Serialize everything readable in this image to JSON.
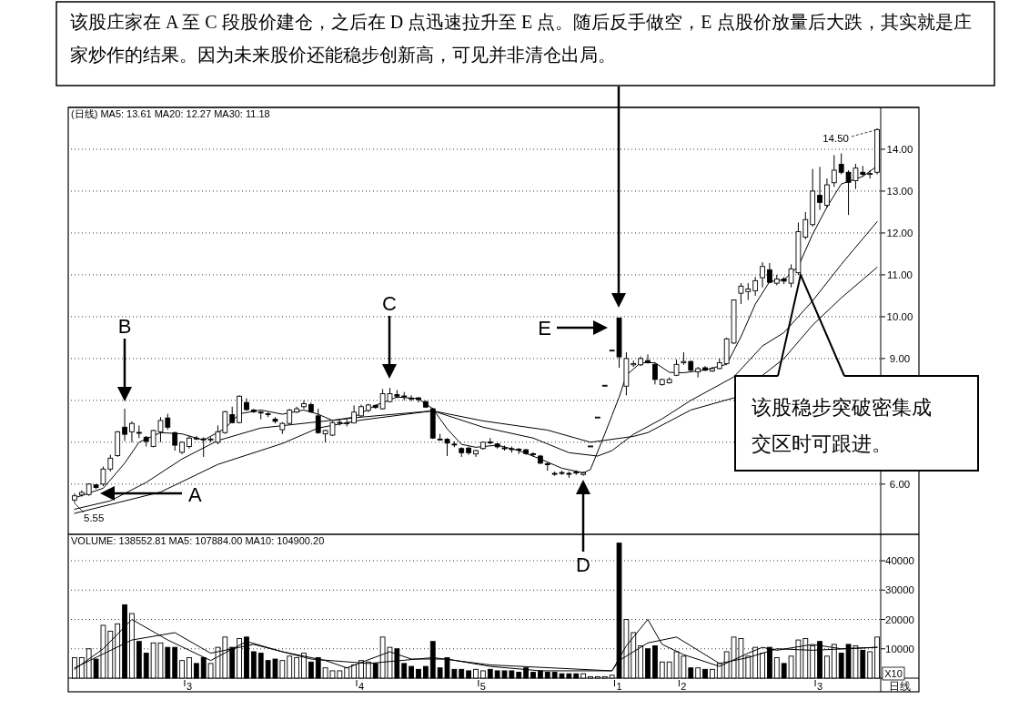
{
  "chart_data": [
    {
      "type": "candlestick",
      "title": "该股庄家在 A 至 C 段股价建仓，之后在 D 点迅速拉升至 E 点。随后反手做空，E 点股价放量后大跌，其实就是庄家炒作的结果。因为未来股价还能稳步创新高，可见并非清仓出局。",
      "subtitle": "(日线) MA5: 13.61  MA20: 12.27  MA30: 11.18",
      "categories": [
        null,
        null,
        null,
        null,
        null,
        null,
        null,
        null,
        null,
        null,
        null,
        null,
        null,
        null,
        null,
        null,
        null,
        null,
        null,
        null,
        null,
        null,
        null,
        null,
        null,
        null,
        null,
        null,
        null,
        null,
        null,
        null,
        null,
        null,
        null,
        null,
        null,
        null,
        null,
        null,
        null,
        null,
        null,
        null,
        null,
        null,
        null,
        null,
        null,
        null,
        null,
        null,
        null,
        null,
        null,
        null,
        null,
        null,
        null,
        null,
        null,
        null,
        null,
        null,
        null,
        null,
        null,
        null,
        null,
        null,
        null,
        null,
        null,
        null,
        null,
        null,
        null,
        null,
        null,
        null,
        null,
        null,
        null,
        null,
        null,
        null,
        null,
        null,
        null,
        null,
        null,
        null,
        null,
        null,
        null,
        null,
        null,
        null,
        null,
        null,
        null,
        null,
        null,
        null,
        null,
        null,
        null,
        null,
        null,
        null,
        null,
        null,
        null
      ],
      "ohlc": [
        [
          5.62,
          5.78,
          5.55,
          5.72
        ],
        [
          5.74,
          5.85,
          5.7,
          5.8
        ],
        [
          5.75,
          6.02,
          5.72,
          6.0
        ],
        [
          5.98,
          6.0,
          5.88,
          5.92
        ],
        [
          6.0,
          6.42,
          5.95,
          6.36
        ],
        [
          6.36,
          6.7,
          6.3,
          6.62
        ],
        [
          6.68,
          7.27,
          6.65,
          7.25
        ],
        [
          7.36,
          7.8,
          7.03,
          7.19
        ],
        [
          7.25,
          7.5,
          7.0,
          7.45
        ],
        [
          7.23,
          7.4,
          7.1,
          7.22
        ],
        [
          7.12,
          7.15,
          6.9,
          7.02
        ],
        [
          6.9,
          7.3,
          6.88,
          7.28
        ],
        [
          7.25,
          7.6,
          7.0,
          7.52
        ],
        [
          7.58,
          7.68,
          7.3,
          7.36
        ],
        [
          7.23,
          7.25,
          6.8,
          6.93
        ],
        [
          6.76,
          7.02,
          6.72,
          7.0
        ],
        [
          6.9,
          7.15,
          6.85,
          7.1
        ],
        [
          7.1,
          7.15,
          7.05,
          7.08
        ],
        [
          7.08,
          7.12,
          6.65,
          7.06
        ],
        [
          7.06,
          7.12,
          7.0,
          7.07
        ],
        [
          7.0,
          7.4,
          6.95,
          7.25
        ],
        [
          7.23,
          7.75,
          7.2,
          7.73
        ],
        [
          7.66,
          7.85,
          7.45,
          7.47
        ],
        [
          7.47,
          8.12,
          7.45,
          8.1
        ],
        [
          7.95,
          8.05,
          7.75,
          7.78
        ],
        [
          7.77,
          7.8,
          7.7,
          7.73
        ],
        [
          7.72,
          7.75,
          7.55,
          7.7
        ],
        [
          7.68,
          7.72,
          7.6,
          7.66
        ],
        [
          7.55,
          7.6,
          7.45,
          7.5
        ],
        [
          7.3,
          7.48,
          7.2,
          7.45
        ],
        [
          7.45,
          7.8,
          7.42,
          7.77
        ],
        [
          7.72,
          7.85,
          7.7,
          7.8
        ],
        [
          7.85,
          8.0,
          7.8,
          7.92
        ],
        [
          7.9,
          7.95,
          7.7,
          7.73
        ],
        [
          7.63,
          7.8,
          7.2,
          7.23
        ],
        [
          7.2,
          7.3,
          7.0,
          7.28
        ],
        [
          7.17,
          7.5,
          7.15,
          7.47
        ],
        [
          7.46,
          7.55,
          7.4,
          7.47
        ],
        [
          7.45,
          7.55,
          7.38,
          7.46
        ],
        [
          7.46,
          7.88,
          7.45,
          7.72
        ],
        [
          7.63,
          7.9,
          7.6,
          7.85
        ],
        [
          7.76,
          7.92,
          7.72,
          7.89
        ],
        [
          7.88,
          7.9,
          7.8,
          7.83
        ],
        [
          7.8,
          8.27,
          7.78,
          8.16
        ],
        [
          7.97,
          8.3,
          7.95,
          8.16
        ],
        [
          8.14,
          8.25,
          8.05,
          8.1
        ],
        [
          8.1,
          8.2,
          8.0,
          8.09
        ],
        [
          8.05,
          8.12,
          7.98,
          8.04
        ],
        [
          8.06,
          8.08,
          7.95,
          8.02
        ],
        [
          7.97,
          8.0,
          7.82,
          7.84
        ],
        [
          7.8,
          7.82,
          7.08,
          7.1
        ],
        [
          7.07,
          7.2,
          7.05,
          7.06
        ],
        [
          7.07,
          7.1,
          6.67,
          6.98
        ],
        [
          6.95,
          7.02,
          6.88,
          6.94
        ],
        [
          6.85,
          6.88,
          6.65,
          6.75
        ],
        [
          6.86,
          6.9,
          6.7,
          6.75
        ],
        [
          6.72,
          6.82,
          6.65,
          6.8
        ],
        [
          6.85,
          7.02,
          6.82,
          7.0
        ],
        [
          7.0,
          7.1,
          6.95,
          6.99
        ],
        [
          6.96,
          6.98,
          6.85,
          6.89
        ],
        [
          6.86,
          6.92,
          6.8,
          6.85
        ],
        [
          6.84,
          6.9,
          6.75,
          6.83
        ],
        [
          6.83,
          6.86,
          6.72,
          6.82
        ],
        [
          6.82,
          6.84,
          6.7,
          6.73
        ],
        [
          6.72,
          6.76,
          6.65,
          6.71
        ],
        [
          6.67,
          6.7,
          6.48,
          6.5
        ],
        [
          6.48,
          6.52,
          6.32,
          6.47
        ],
        [
          6.25,
          6.3,
          6.2,
          6.24
        ],
        [
          6.27,
          6.32,
          6.22,
          6.26
        ],
        [
          6.25,
          6.3,
          6.15,
          6.24
        ],
        [
          6.28,
          6.33,
          6.22,
          6.27
        ],
        [
          6.23,
          6.3,
          6.2,
          6.27
        ],
        [
          6.9,
          6.9,
          6.9,
          6.9
        ],
        [
          7.59,
          7.59,
          7.59,
          7.59
        ],
        [
          8.35,
          8.35,
          8.35,
          8.35
        ],
        [
          9.19,
          9.19,
          9.19,
          9.19
        ],
        [
          9.97,
          9.97,
          8.78,
          9.04
        ],
        [
          8.34,
          9.15,
          8.12,
          9.0
        ],
        [
          8.85,
          8.95,
          8.8,
          8.88
        ],
        [
          8.85,
          9.05,
          8.82,
          9.0
        ],
        [
          8.95,
          9.1,
          8.88,
          8.9
        ],
        [
          8.86,
          8.9,
          8.38,
          8.5
        ],
        [
          8.38,
          8.52,
          8.35,
          8.5
        ],
        [
          8.42,
          8.55,
          8.4,
          8.5
        ],
        [
          8.6,
          8.98,
          8.58,
          8.86
        ],
        [
          8.9,
          9.15,
          8.85,
          8.93
        ],
        [
          8.93,
          8.95,
          8.7,
          8.72
        ],
        [
          8.68,
          8.8,
          8.55,
          8.76
        ],
        [
          8.78,
          8.82,
          8.7,
          8.72
        ],
        [
          8.7,
          8.8,
          8.68,
          8.76
        ],
        [
          8.76,
          9.0,
          8.74,
          8.9
        ],
        [
          8.88,
          9.5,
          8.85,
          9.47
        ],
        [
          9.37,
          10.4,
          9.35,
          10.4
        ],
        [
          10.56,
          10.8,
          10.3,
          10.73
        ],
        [
          10.6,
          10.8,
          10.4,
          10.66
        ],
        [
          10.62,
          10.95,
          10.5,
          10.86
        ],
        [
          10.93,
          11.3,
          10.7,
          11.2
        ],
        [
          11.12,
          11.28,
          10.8,
          10.82
        ],
        [
          10.8,
          11.0,
          10.75,
          10.9
        ],
        [
          10.9,
          10.95,
          10.78,
          10.85
        ],
        [
          10.8,
          11.25,
          10.7,
          11.14
        ],
        [
          11.05,
          12.25,
          11.0,
          12.03
        ],
        [
          11.9,
          12.5,
          11.85,
          12.32
        ],
        [
          12.2,
          13.53,
          12.15,
          13.0
        ],
        [
          12.9,
          13.58,
          12.55,
          12.73
        ],
        [
          12.66,
          13.3,
          12.6,
          13.15
        ],
        [
          13.2,
          13.86,
          13.1,
          13.5
        ],
        [
          13.64,
          13.9,
          13.4,
          13.45
        ],
        [
          13.45,
          13.5,
          12.43,
          13.21
        ],
        [
          13.25,
          13.65,
          13.05,
          13.55
        ],
        [
          13.45,
          13.6,
          13.35,
          13.4
        ],
        [
          13.4,
          13.5,
          13.3,
          13.42
        ],
        [
          13.45,
          14.5,
          13.4,
          14.47
        ]
      ],
      "series": [
        {
          "type": "line",
          "color": "#000000",
          "values": [
            5.67,
            null,
            null,
            null,
            5.9,
            null,
            null,
            6.5,
            null,
            7.0,
            null,
            null,
            7.23,
            null,
            null,
            7.2,
            null,
            null,
            7.05,
            null,
            null,
            7.33,
            null,
            7.68,
            null,
            null,
            7.77,
            null,
            null,
            7.67,
            null,
            null,
            7.77,
            null,
            7.67,
            null,
            7.52,
            null,
            null,
            7.6,
            null,
            null,
            7.88,
            null,
            null,
            8.08,
            null,
            null,
            8.04,
            null,
            7.8,
            null,
            7.32,
            null,
            6.95,
            null,
            6.88,
            null,
            null,
            6.93,
            null,
            null,
            6.8,
            null,
            null,
            6.6,
            null,
            null,
            6.38,
            null,
            null,
            6.27,
            6.35,
            null,
            7.2,
            7.64,
            8.08,
            8.6,
            null,
            8.9,
            null,
            8.9,
            null,
            8.67,
            null,
            8.66,
            null,
            null,
            8.73,
            null,
            null,
            8.86,
            null,
            9.52,
            null,
            10.3,
            null,
            10.84,
            null,
            10.88,
            null,
            11.2,
            null,
            11.97,
            null,
            12.62,
            null,
            13.17,
            null,
            null,
            13.35,
            null,
            13.6
          ]
        },
        {
          "type": "line",
          "color": "#000000",
          "values": [
            5.4,
            null,
            null,
            null,
            null,
            5.6,
            null,
            null,
            null,
            null,
            6.04,
            null,
            null,
            null,
            null,
            6.6,
            null,
            null,
            null,
            null,
            7.04,
            null,
            null,
            null,
            null,
            null,
            7.34,
            null,
            null,
            null,
            null,
            null,
            null,
            7.47,
            null,
            null,
            null,
            null,
            null,
            null,
            7.6,
            null,
            null,
            null,
            null,
            null,
            null,
            null,
            null,
            null,
            7.75,
            null,
            null,
            null,
            null,
            null,
            null,
            7.36,
            null,
            null,
            null,
            null,
            null,
            null,
            7.1,
            null,
            null,
            null,
            null,
            6.75,
            null,
            null,
            null,
            6.67,
            null,
            6.8,
            null,
            null,
            7.19,
            null,
            null,
            null,
            7.56,
            null,
            null,
            null,
            8.0,
            null,
            null,
            null,
            null,
            null,
            8.56,
            null,
            null,
            null,
            9.3,
            null,
            null,
            9.62,
            null,
            null,
            null,
            10.38,
            null,
            null,
            null,
            11.25,
            null,
            null,
            null,
            null,
            12.27
          ]
        },
        {
          "type": "line",
          "color": "#000000",
          "values": [
            5.3,
            null,
            null,
            null,
            null,
            null,
            null,
            null,
            null,
            null,
            null,
            null,
            5.81,
            null,
            null,
            null,
            null,
            null,
            null,
            null,
            6.47,
            null,
            null,
            null,
            null,
            null,
            null,
            null,
            null,
            6.97,
            null,
            null,
            null,
            null,
            7.34,
            null,
            null,
            null,
            null,
            null,
            7.53,
            null,
            null,
            null,
            null,
            null,
            null,
            null,
            null,
            null,
            7.75,
            null,
            null,
            null,
            null,
            null,
            null,
            7.51,
            null,
            null,
            null,
            null,
            null,
            null,
            null,
            null,
            7.29,
            null,
            null,
            null,
            null,
            null,
            7.0,
            null,
            null,
            null,
            null,
            null,
            7.14,
            null,
            7.23,
            null,
            null,
            null,
            null,
            null,
            7.77,
            null,
            null,
            null,
            null,
            null,
            8.06,
            null,
            null,
            null,
            null,
            null,
            null,
            9.0,
            null,
            null,
            null,
            9.8,
            null,
            null,
            null,
            10.45,
            null,
            null,
            null,
            null,
            11.18
          ]
        }
      ],
      "ylim": [
        4.8,
        15.0
      ],
      "yticks": [
        {
          "value": 6,
          "label": "6.00"
        },
        {
          "value": 7,
          "label": null
        },
        {
          "value": 8,
          "label": null
        },
        {
          "value": 9,
          "label": "9.00"
        },
        {
          "value": 10,
          "label": "10.00"
        },
        {
          "value": 11,
          "label": "11.00"
        },
        {
          "value": 12,
          "label": "12.00"
        },
        {
          "value": 13,
          "label": "13.00"
        },
        {
          "value": 14,
          "label": "14.00"
        }
      ],
      "grid": "y",
      "tick_labels": "y",
      "annotations": [
        "A",
        "B",
        "C",
        "D",
        "E",
        "5.55",
        "14.50",
        "该股稳步突破密集成交区时可跟进。"
      ]
    },
    {
      "type": "bar",
      "title": "VOLUME: 138552.81  MA5: 107884.00  MA10: 104900.20",
      "categories": [
        null,
        null,
        null,
        null,
        null,
        null,
        null,
        null,
        null,
        null,
        null,
        null,
        null,
        null,
        null,
        null,
        "3",
        null,
        null,
        null,
        null,
        null,
        null,
        null,
        null,
        null,
        null,
        null,
        null,
        null,
        null,
        null,
        null,
        null,
        null,
        null,
        null,
        null,
        null,
        null,
        "4",
        null,
        null,
        null,
        null,
        null,
        null,
        null,
        null,
        null,
        null,
        null,
        null,
        null,
        null,
        null,
        null,
        "5",
        null,
        null,
        null,
        null,
        null,
        null,
        null,
        null,
        null,
        null,
        null,
        null,
        null,
        null,
        null,
        null,
        null,
        null,
        "1",
        null,
        null,
        null,
        null,
        null,
        null,
        null,
        null,
        "2",
        null,
        null,
        null,
        null,
        null,
        null,
        null,
        null,
        null,
        null,
        null,
        null,
        null,
        null,
        null,
        null,
        null,
        null,
        "3",
        null,
        null,
        null,
        null,
        null,
        null,
        null,
        null
      ],
      "series": [
        {
          "type": "bar",
          "values": [
            7000,
            7000,
            10000,
            6500,
            18000,
            16000,
            18500,
            25000,
            22000,
            12500,
            8500,
            12000,
            12000,
            10500,
            10500,
            6000,
            7000,
            5000,
            7000,
            5000,
            10500,
            14000,
            10500,
            13500,
            14000,
            9000,
            8500,
            6000,
            6500,
            6000,
            7500,
            7000,
            8500,
            5500,
            7000,
            3500,
            2500,
            2500,
            3500,
            4500,
            6000,
            5500,
            5000,
            14000,
            10500,
            10000,
            5000,
            4000,
            3000,
            4000,
            12500,
            3500,
            7000,
            3000,
            3000,
            2500,
            3000,
            2500,
            3000,
            2500,
            2500,
            2500,
            2000,
            3500,
            2000,
            2500,
            2000,
            2000,
            1500,
            1500,
            1500,
            1500,
            500,
            500,
            500,
            1000,
            46000,
            20000,
            15500,
            11000,
            10000,
            11000,
            5500,
            5500,
            9000,
            7500,
            3500,
            3500,
            3000,
            3000,
            5000,
            9000,
            14000,
            13500,
            7500,
            10500,
            8500,
            10500,
            7000,
            5000,
            7500,
            13000,
            13500,
            11000,
            12500,
            7500,
            11500,
            8500,
            11500,
            11000,
            9500,
            9000,
            14000
          ],
          "colors": [
            "#ffffff",
            "#ffffff",
            "#ffffff",
            "#000000",
            "#ffffff",
            "#ffffff",
            "#ffffff",
            "#000000",
            "#ffffff",
            "#000000",
            "#000000",
            "#ffffff",
            "#ffffff",
            "#000000",
            "#000000",
            "#ffffff",
            "#ffffff",
            "#000000",
            "#000000",
            "#ffffff",
            "#ffffff",
            "#ffffff",
            "#000000",
            "#ffffff",
            "#000000",
            "#000000",
            "#000000",
            "#000000",
            "#000000",
            "#ffffff",
            "#ffffff",
            "#ffffff",
            "#ffffff",
            "#000000",
            "#000000",
            "#ffffff",
            "#ffffff",
            "#ffffff",
            "#ffffff",
            "#ffffff",
            "#ffffff",
            "#ffffff",
            "#000000",
            "#ffffff",
            "#ffffff",
            "#000000",
            "#000000",
            "#000000",
            "#000000",
            "#000000",
            "#000000",
            "#000000",
            "#000000",
            "#000000",
            "#000000",
            "#000000",
            "#ffffff",
            "#ffffff",
            "#000000",
            "#000000",
            "#000000",
            "#000000",
            "#000000",
            "#000000",
            "#000000",
            "#000000",
            "#000000",
            "#000000",
            "#000000",
            "#000000",
            "#000000",
            "#ffffff",
            "#ffffff",
            "#ffffff",
            "#ffffff",
            "#ffffff",
            "#000000",
            "#ffffff",
            "#ffffff",
            "#ffffff",
            "#000000",
            "#000000",
            "#ffffff",
            "#ffffff",
            "#ffffff",
            "#ffffff",
            "#000000",
            "#ffffff",
            "#000000",
            "#ffffff",
            "#ffffff",
            "#ffffff",
            "#ffffff",
            "#ffffff",
            "#ffffff",
            "#ffffff",
            "#ffffff",
            "#000000",
            "#ffffff",
            "#000000",
            "#ffffff",
            "#ffffff",
            "#ffffff",
            "#ffffff",
            "#000000",
            "#ffffff",
            "#ffffff",
            "#000000",
            "#000000",
            "#ffffff",
            "#000000",
            "#ffffff",
            "#ffffff"
          ]
        },
        {
          "type": "line",
          "color": "#000000",
          "values": [
            3000,
            null,
            null,
            null,
            10000,
            null,
            null,
            null,
            20000,
            null,
            null,
            null,
            null,
            13000,
            null,
            null,
            null,
            null,
            null,
            6000,
            null,
            null,
            null,
            null,
            12500,
            null,
            null,
            null,
            null,
            9000,
            null,
            null,
            null,
            null,
            null,
            6000,
            null,
            null,
            3500,
            null,
            null,
            null,
            null,
            null,
            9000,
            null,
            null,
            6500,
            null,
            null,
            null,
            null,
            6500,
            null,
            null,
            null,
            null,
            null,
            4000,
            null,
            null,
            null,
            null,
            null,
            null,
            2500,
            null,
            null,
            null,
            null,
            null,
            null,
            null,
            null,
            null,
            2500,
            null,
            11000,
            null,
            null,
            20000,
            null,
            11500,
            null,
            null,
            8000,
            null,
            null,
            null,
            null,
            4000,
            null,
            null,
            null,
            8500,
            null,
            10500,
            null,
            9500,
            null,
            null,
            null,
            null,
            11500,
            null,
            null,
            null,
            10000,
            null,
            null,
            null,
            null,
            10500
          ]
        },
        {
          "type": "line",
          "color": "#000000",
          "values": [
            3500,
            null,
            null,
            null,
            null,
            null,
            null,
            null,
            13000,
            null,
            null,
            null,
            null,
            null,
            15500,
            null,
            null,
            null,
            null,
            8500,
            null,
            null,
            null,
            null,
            null,
            11500,
            null,
            null,
            null,
            null,
            null,
            null,
            null,
            6500,
            null,
            null,
            null,
            null,
            null,
            null,
            null,
            5000,
            null,
            null,
            null,
            null,
            null,
            null,
            null,
            null,
            7000,
            null,
            null,
            null,
            null,
            null,
            null,
            null,
            4500,
            null,
            null,
            null,
            null,
            null,
            null,
            null,
            null,
            null,
            null,
            null,
            null,
            null,
            null,
            null,
            null,
            2500,
            6000,
            null,
            null,
            null,
            12000,
            null,
            null,
            null,
            14000,
            null,
            null,
            null,
            null,
            null,
            5000,
            null,
            null,
            null,
            7000,
            null,
            null,
            null,
            10000,
            null,
            null,
            null,
            null,
            9500,
            null,
            null,
            null,
            null,
            null,
            null,
            null,
            null,
            10500
          ]
        }
      ],
      "ylim": [
        0,
        49000
      ],
      "yticks": [
        10000,
        20000,
        30000,
        40000
      ],
      "grid": "y",
      "annotations": [
        "X10",
        "日线"
      ]
    }
  ]
}
